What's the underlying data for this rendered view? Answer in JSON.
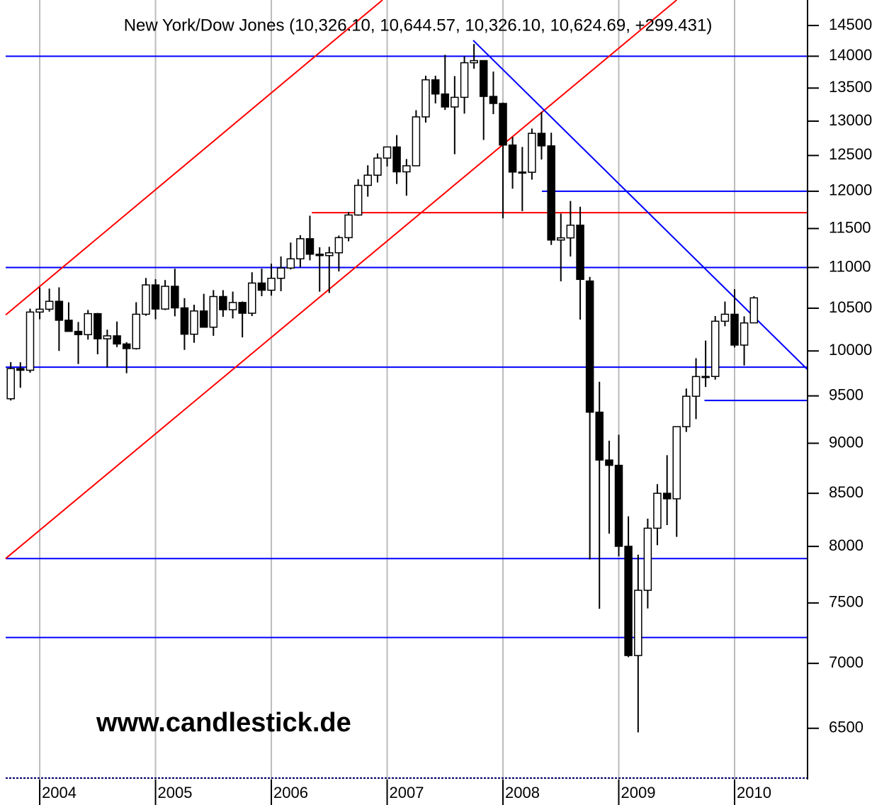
{
  "chart_data": {
    "type": "candlestick",
    "title": "New York/Dow Jones (10,326.10, 10,644.57, 10,326.10, 10,624.69, +299.431)",
    "annotation": "www.candlestick.de",
    "log_y": true,
    "grid_x": true,
    "up_color": "#ffffff",
    "down_color": "#000000",
    "xlim": [
      2003.706,
      2010.63
    ],
    "ylim": [
      6131,
      14928
    ],
    "xticks": [
      2004,
      2005,
      2006,
      2007,
      2008,
      2009,
      2010
    ],
    "yticks": [
      6500,
      7000,
      7500,
      8000,
      8500,
      9000,
      9500,
      10000,
      10500,
      11000,
      11500,
      12000,
      12500,
      13000,
      13500,
      14000,
      14500
    ],
    "x": [
      2003.75,
      2003.833,
      2003.917,
      2004,
      2004.083,
      2004.167,
      2004.25,
      2004.333,
      2004.417,
      2004.5,
      2004.583,
      2004.667,
      2004.75,
      2004.833,
      2004.917,
      2005,
      2005.083,
      2005.167,
      2005.25,
      2005.333,
      2005.417,
      2005.5,
      2005.583,
      2005.667,
      2005.75,
      2005.833,
      2005.917,
      2006,
      2006.083,
      2006.167,
      2006.25,
      2006.333,
      2006.417,
      2006.5,
      2006.583,
      2006.667,
      2006.75,
      2006.833,
      2006.917,
      2007,
      2007.083,
      2007.167,
      2007.25,
      2007.333,
      2007.417,
      2007.5,
      2007.583,
      2007.667,
      2007.75,
      2007.833,
      2007.917,
      2008,
      2008.083,
      2008.167,
      2008.25,
      2008.333,
      2008.417,
      2008.5,
      2008.583,
      2008.667,
      2008.75,
      2008.833,
      2008.917,
      2009,
      2009.083,
      2009.167,
      2009.25,
      2009.333,
      2009.417,
      2009.5,
      2009.583,
      2009.667,
      2009.75,
      2009.833,
      2009.917,
      2010,
      2010.083,
      2010.167
    ],
    "open": [
      9469,
      9801,
      9782,
      10454,
      10488,
      10583,
      10357,
      10226,
      10188,
      10435,
      10140,
      10174,
      10080,
      10027,
      10428,
      10783,
      10490,
      10766,
      10504,
      10193,
      10467,
      10275,
      10641,
      10482,
      10569,
      10440,
      10806,
      10718,
      10865,
      10993,
      11109,
      11367,
      11168,
      11150,
      11186,
      11381,
      11679,
      12081,
      12222,
      12463,
      12622,
      12269,
      12354,
      13063,
      13628,
      13409,
      13212,
      13358,
      13896,
      13930,
      13372,
      13265,
      12650,
      12266,
      12263,
      12820,
      12638,
      11350,
      11378,
      11544,
      10831,
      9325,
      8829,
      8776,
      8001,
      7063,
      7609,
      8168,
      8500,
      8447,
      9172,
      9496,
      9712,
      9713,
      10345,
      10428,
      10067,
      10326.1
    ],
    "high": [
      9873,
      9872,
      10494,
      10753,
      10738,
      10753,
      10571,
      10336,
      10479,
      10443,
      10246,
      10342,
      10101,
      10572,
      10868,
      10854,
      10843,
      10984,
      10621,
      10542,
      10674,
      10720,
      10719,
      10701,
      10581,
      10940,
      10985,
      11048,
      11139,
      11317,
      11413,
      11670,
      11257,
      11263,
      11408,
      11719,
      12167,
      12361,
      12529,
      12622,
      12795,
      12450,
      13163,
      13692,
      13692,
      14022,
      13686,
      14000,
      14198,
      13933,
      13757,
      13279,
      12767,
      12622,
      12891,
      13136,
      12830,
      11698,
      11867,
      11790,
      10882,
      9654,
      9026,
      9088,
      8280,
      7925,
      8258,
      8589,
      8878,
      9172,
      9580,
      9917,
      10119,
      10406,
      10580,
      10730,
      10403,
      10644.57
    ],
    "low": [
      9450,
      9588,
      9754,
      10368,
      10459,
      10000,
      10226,
      9852,
      10130,
      9962,
      9814,
      10044,
      9749,
      10016,
      10410,
      10368,
      10478,
      10403,
      10012,
      10094,
      10270,
      10174,
      10397,
      10378,
      10156,
      10406,
      10645,
      10652,
      10706,
      10975,
      11000,
      11090,
      10700,
      10684,
      10950,
      11334,
      11668,
      11926,
      12121,
      12344,
      12100,
      11939,
      12354,
      12979,
      13266,
      13167,
      12518,
      13111,
      13801,
      12724,
      13104,
      11634,
      12035,
      11731,
      12160,
      12442,
      11287,
      10827,
      11138,
      10365,
      7882,
      7450,
      8118,
      7910,
      7050,
      6470,
      7453,
      8011,
      8197,
      8088,
      9117,
      9252,
      9597,
      9678,
      10286,
      10040,
      9835,
      10326.1
    ],
    "close": [
      9801,
      9782,
      10454,
      10488,
      10583,
      10357,
      10226,
      10188,
      10435,
      10140,
      10174,
      10080,
      10027,
      10428,
      10783,
      10490,
      10766,
      10504,
      10193,
      10467,
      10275,
      10641,
      10482,
      10569,
      10440,
      10806,
      10718,
      10865,
      10993,
      11109,
      11367,
      11168,
      11150,
      11186,
      11381,
      11679,
      12081,
      12222,
      12463,
      12622,
      12269,
      12354,
      13063,
      13628,
      13409,
      13212,
      13358,
      13896,
      13930,
      13372,
      13265,
      12650,
      12266,
      12263,
      12820,
      12638,
      11350,
      11378,
      11544,
      10851,
      9325,
      8829,
      8776,
      8001,
      7063,
      7609,
      8168,
      8500,
      8447,
      9172,
      9496,
      9712,
      9713,
      10345,
      10428,
      10067,
      10325,
      10624.69
    ],
    "hlines": [
      {
        "value": 14000,
        "from": 2003.706,
        "color": "#0000ff"
      },
      {
        "value": 11000,
        "from": 2003.706,
        "color": "#0000ff"
      },
      {
        "value": 9817,
        "from": 2003.706,
        "color": "#0000ff"
      },
      {
        "value": 7890,
        "from": 2003.706,
        "color": "#0000ff"
      },
      {
        "value": 7210,
        "from": 2003.706,
        "color": "#0000ff"
      },
      {
        "value": 12000,
        "from": 2008.336,
        "color": "#0000ff"
      },
      {
        "value": 9450,
        "from": 2009.74,
        "color": "#0000ff"
      },
      {
        "value": 11710,
        "from": 2006.35,
        "color": "#ff0000"
      }
    ],
    "trendlines": [
      {
        "x": [
          2003.706,
          2006.96
        ],
        "y": [
          10420,
          14928
        ],
        "color": "#ff0000"
      },
      {
        "x": [
          2003.706,
          2009.5
        ],
        "y": [
          7890,
          14928
        ],
        "color": "#ff0000"
      },
      {
        "x": [
          2007.743,
          2010.63
        ],
        "y": [
          14256,
          9790
        ],
        "color": "#0000ff"
      }
    ]
  }
}
